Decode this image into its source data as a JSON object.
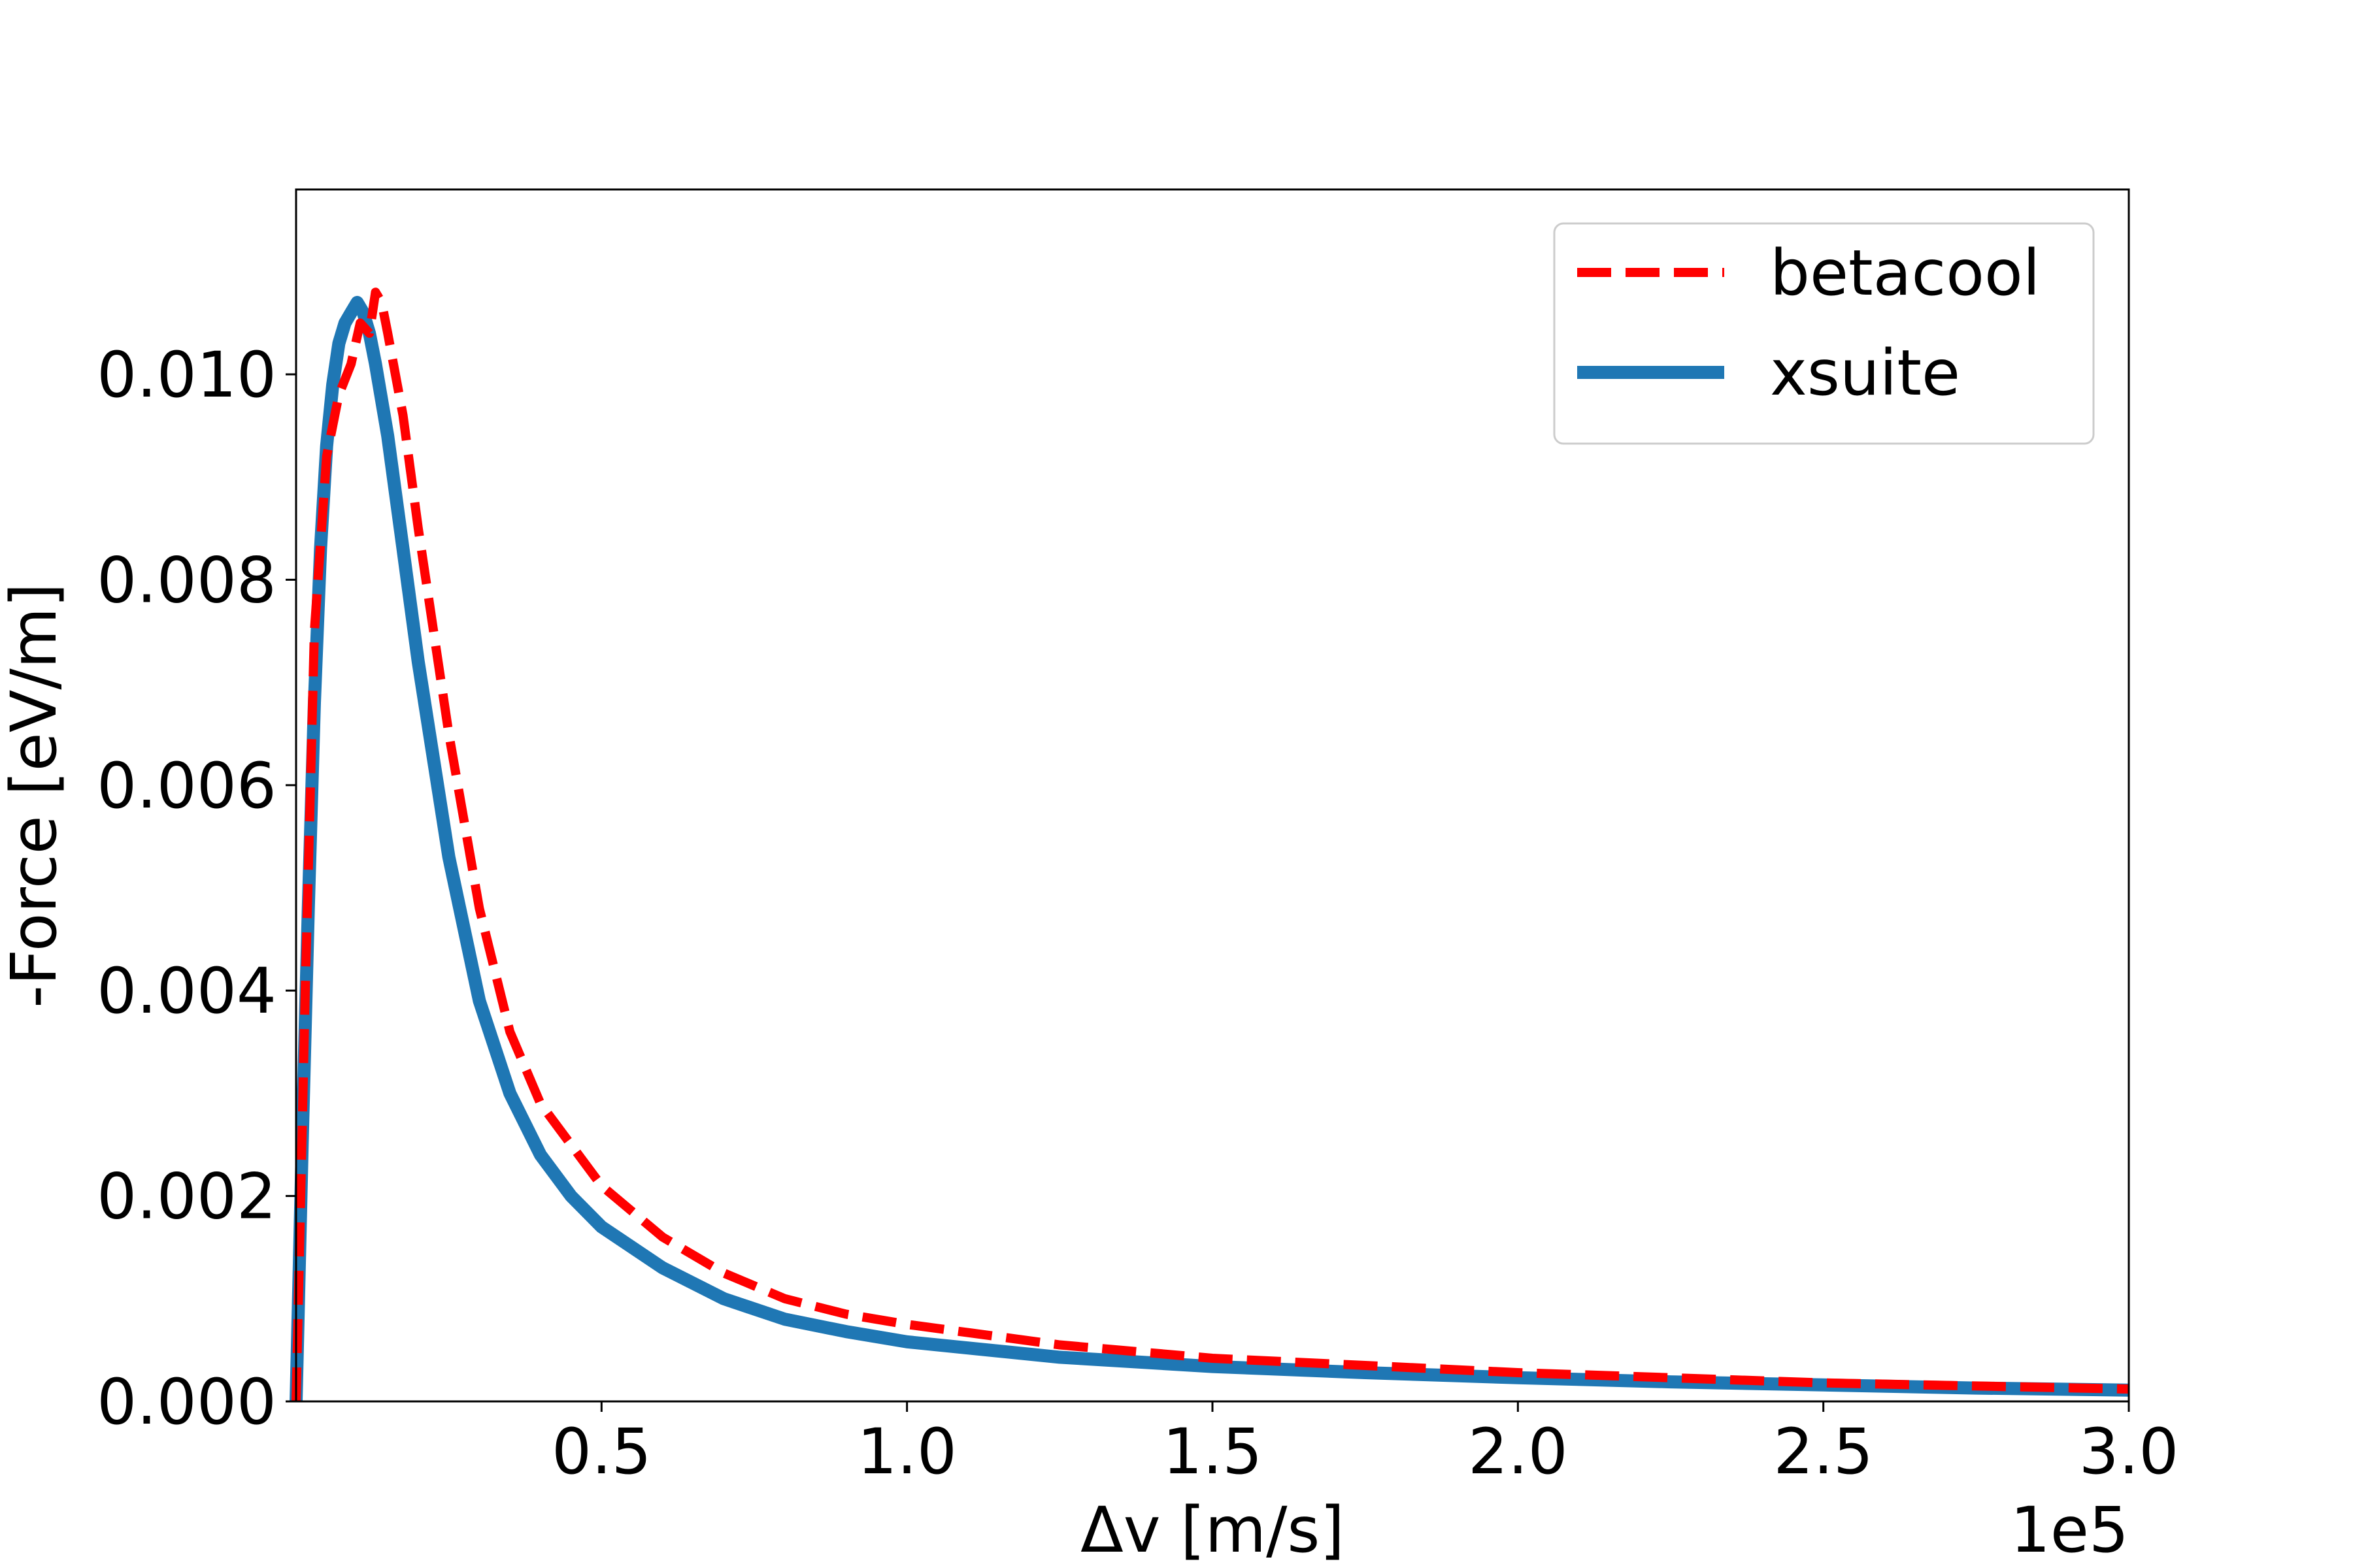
{
  "chart_data": {
    "type": "line",
    "title": "",
    "xlabel": "Δv [m/s]",
    "ylabel": "-Force [eV/m]",
    "x_offset_label": "1e5",
    "xlim": [
      0,
      300000
    ],
    "ylim": [
      0,
      0.0118
    ],
    "x_ticks": [
      50000,
      100000,
      150000,
      200000,
      250000,
      300000
    ],
    "x_tick_labels": [
      "0.5",
      "1.0",
      "1.5",
      "2.0",
      "2.5",
      "3.0"
    ],
    "y_ticks": [
      0,
      0.002,
      0.004,
      0.006,
      0.008,
      0.01
    ],
    "y_tick_labels": [
      "0.000",
      "0.002",
      "0.004",
      "0.006",
      "0.008",
      "0.010"
    ],
    "grid": false,
    "legend_position": "top-right",
    "series": [
      {
        "name": "betacool",
        "color": "#ff0000",
        "style": "dashed",
        "x": [
          0,
          1500,
          3000,
          5000,
          7000,
          9000,
          10500,
          12000,
          13000,
          14000,
          15000,
          17500,
          20000,
          25000,
          30000,
          35000,
          40000,
          45000,
          50000,
          60000,
          70000,
          80000,
          90000,
          100000,
          125000,
          150000,
          175000,
          200000,
          225000,
          250000,
          275000,
          300000
        ],
        "y": [
          0.0,
          0.004,
          0.0075,
          0.0092,
          0.0098,
          0.0101,
          0.0105,
          0.0104,
          0.0108,
          0.0107,
          0.0104,
          0.0096,
          0.0085,
          0.0065,
          0.0048,
          0.0036,
          0.0029,
          0.0025,
          0.0021,
          0.0016,
          0.00125,
          0.001,
          0.00085,
          0.00075,
          0.00055,
          0.00042,
          0.00035,
          0.00028,
          0.00023,
          0.00018,
          0.00015,
          0.00012
        ]
      },
      {
        "name": "xsuite",
        "color": "#1f77b4",
        "style": "solid",
        "x": [
          0,
          1000,
          2000,
          3000,
          4000,
          5000,
          6000,
          7000,
          8000,
          9000,
          10000,
          11000,
          12000,
          13000,
          15000,
          17500,
          20000,
          25000,
          30000,
          35000,
          40000,
          45000,
          50000,
          60000,
          70000,
          80000,
          90000,
          100000,
          125000,
          150000,
          175000,
          200000,
          225000,
          250000,
          275000,
          300000
        ],
        "y": [
          0.0,
          0.0025,
          0.0048,
          0.0068,
          0.0083,
          0.0093,
          0.0099,
          0.0103,
          0.0105,
          0.0106,
          0.0107,
          0.0106,
          0.0104,
          0.0101,
          0.0094,
          0.0083,
          0.0072,
          0.0053,
          0.0039,
          0.003,
          0.0024,
          0.002,
          0.0017,
          0.0013,
          0.001,
          0.0008,
          0.00068,
          0.00058,
          0.00043,
          0.00034,
          0.00028,
          0.00023,
          0.00019,
          0.00016,
          0.00013,
          0.00011
        ]
      }
    ]
  }
}
